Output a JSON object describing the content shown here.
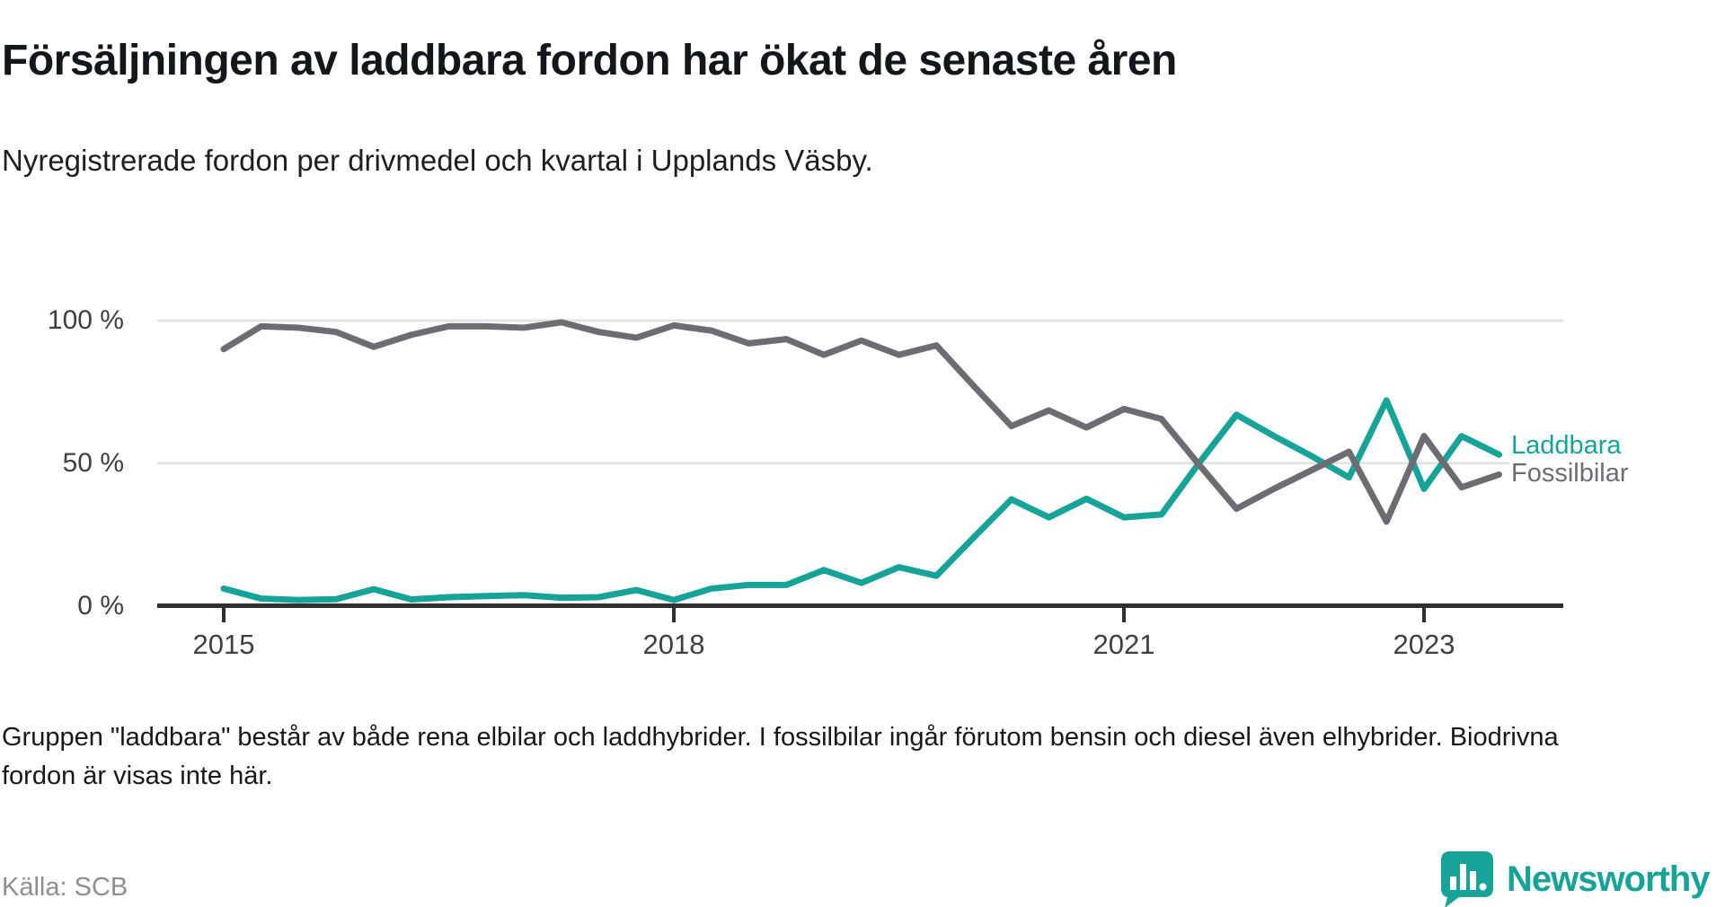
{
  "header": {
    "title": "Försäljningen av laddbara fordon har ökat de senaste åren",
    "subtitle": "Nyregistrerade fordon per drivmedel och kvartal i Upplands Väsby."
  },
  "chart_data": {
    "type": "line",
    "title": "Försäljningen av laddbara fordon har ökat de senaste åren",
    "xlabel": "",
    "ylabel": "",
    "ylim": [
      0,
      100
    ],
    "grid": "horizontal-only",
    "legend_position": "right-end-of-line",
    "x_quarters": [
      "2015Q1",
      "2015Q2",
      "2015Q3",
      "2015Q4",
      "2016Q1",
      "2016Q2",
      "2016Q3",
      "2016Q4",
      "2017Q1",
      "2017Q2",
      "2017Q3",
      "2017Q4",
      "2018Q1",
      "2018Q2",
      "2018Q3",
      "2018Q4",
      "2019Q1",
      "2019Q2",
      "2019Q3",
      "2019Q4",
      "2020Q1",
      "2020Q2",
      "2020Q3",
      "2020Q4",
      "2021Q1",
      "2021Q2",
      "2021Q3",
      "2021Q4",
      "2022Q1",
      "2022Q2",
      "2022Q3",
      "2022Q4",
      "2023Q1",
      "2023Q2",
      "2023Q3"
    ],
    "series": [
      {
        "name": "Laddbara",
        "color": "#17a398",
        "values": [
          6,
          2.5,
          2,
          2.3,
          5.8,
          2.2,
          3,
          3.4,
          3.7,
          2.8,
          3,
          5.5,
          2,
          6,
          7.3,
          7.3,
          12.5,
          8,
          13.5,
          10.5,
          24,
          37.3,
          31,
          37.5,
          31,
          32,
          50,
          67,
          59.5,
          52.5,
          45,
          72,
          41,
          59.5,
          53
        ]
      },
      {
        "name": "Fossilbilar",
        "color": "#6d6c73",
        "values": [
          90,
          98,
          97.5,
          96,
          90.8,
          95,
          98,
          98,
          97.5,
          99.4,
          96,
          94,
          98.3,
          96.5,
          92,
          93.5,
          88,
          93,
          88,
          91.3,
          77,
          63,
          68.5,
          62.5,
          69,
          65.5,
          49.5,
          34,
          41,
          47.5,
          54,
          29.5,
          59.5,
          41.5,
          46
        ]
      }
    ],
    "y_ticks": [
      {
        "label": "100 %",
        "value": 100
      },
      {
        "label": "50 %",
        "value": 50
      },
      {
        "label": "0 %",
        "value": 0
      }
    ],
    "x_ticks": [
      {
        "label": "2015",
        "index": 0
      },
      {
        "label": "2018",
        "index": 12
      },
      {
        "label": "2021",
        "index": 24
      },
      {
        "label": "2023",
        "index": 32
      }
    ]
  },
  "footer": {
    "note": "Gruppen \"laddbara\" består av både rena elbilar och laddhybrider. I fossilbilar ingår förutom bensin och diesel även elhybrider. Biodrivna fordon är visas inte här.",
    "source": "Källa: SCB"
  },
  "logo": {
    "text": "Newsworthy",
    "color": "#17a398",
    "icon": "newsworthy-pin-bar-chart-icon"
  },
  "colors": {
    "grid": "#e3e3e3",
    "axis": "#2d2f31",
    "tick_text": "#3d4043"
  }
}
